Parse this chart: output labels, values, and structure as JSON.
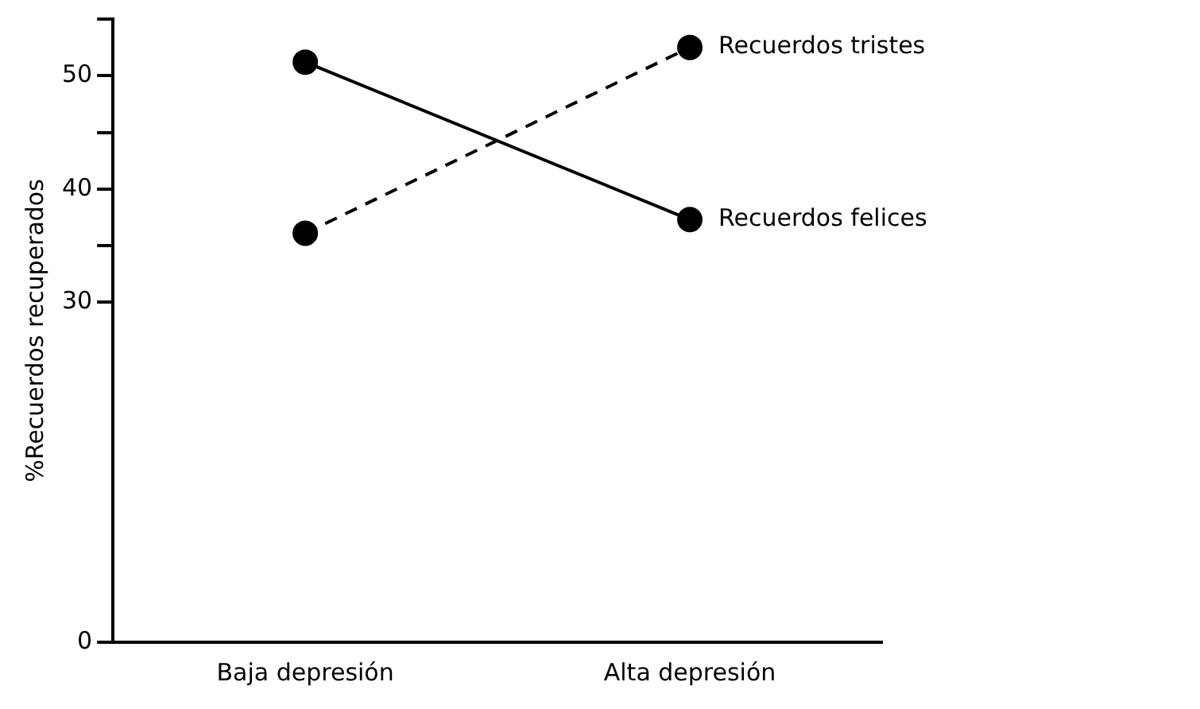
{
  "chart_data": {
    "type": "line",
    "ylabel": "%Recuerdos recuperados",
    "categories": [
      "Baja depresión",
      "Alta depresión"
    ],
    "series": [
      {
        "name": "Recuerdos felices",
        "color": "#000000",
        "values": [
          51.2,
          37.3
        ],
        "line_style": "solid"
      },
      {
        "name": "Recuerdos tristes",
        "color": "#000000",
        "values": [
          36.1,
          52.5
        ],
        "line_style": "dashed"
      }
    ],
    "ylim": [
      0,
      55
    ],
    "yticks": [
      0,
      30,
      {
        "value": 35,
        "label": null
      },
      40,
      {
        "value": 45,
        "label": null
      },
      50,
      {
        "value": 55,
        "label": null
      }
    ],
    "grid": false,
    "legend": false,
    "marker": "circle"
  }
}
